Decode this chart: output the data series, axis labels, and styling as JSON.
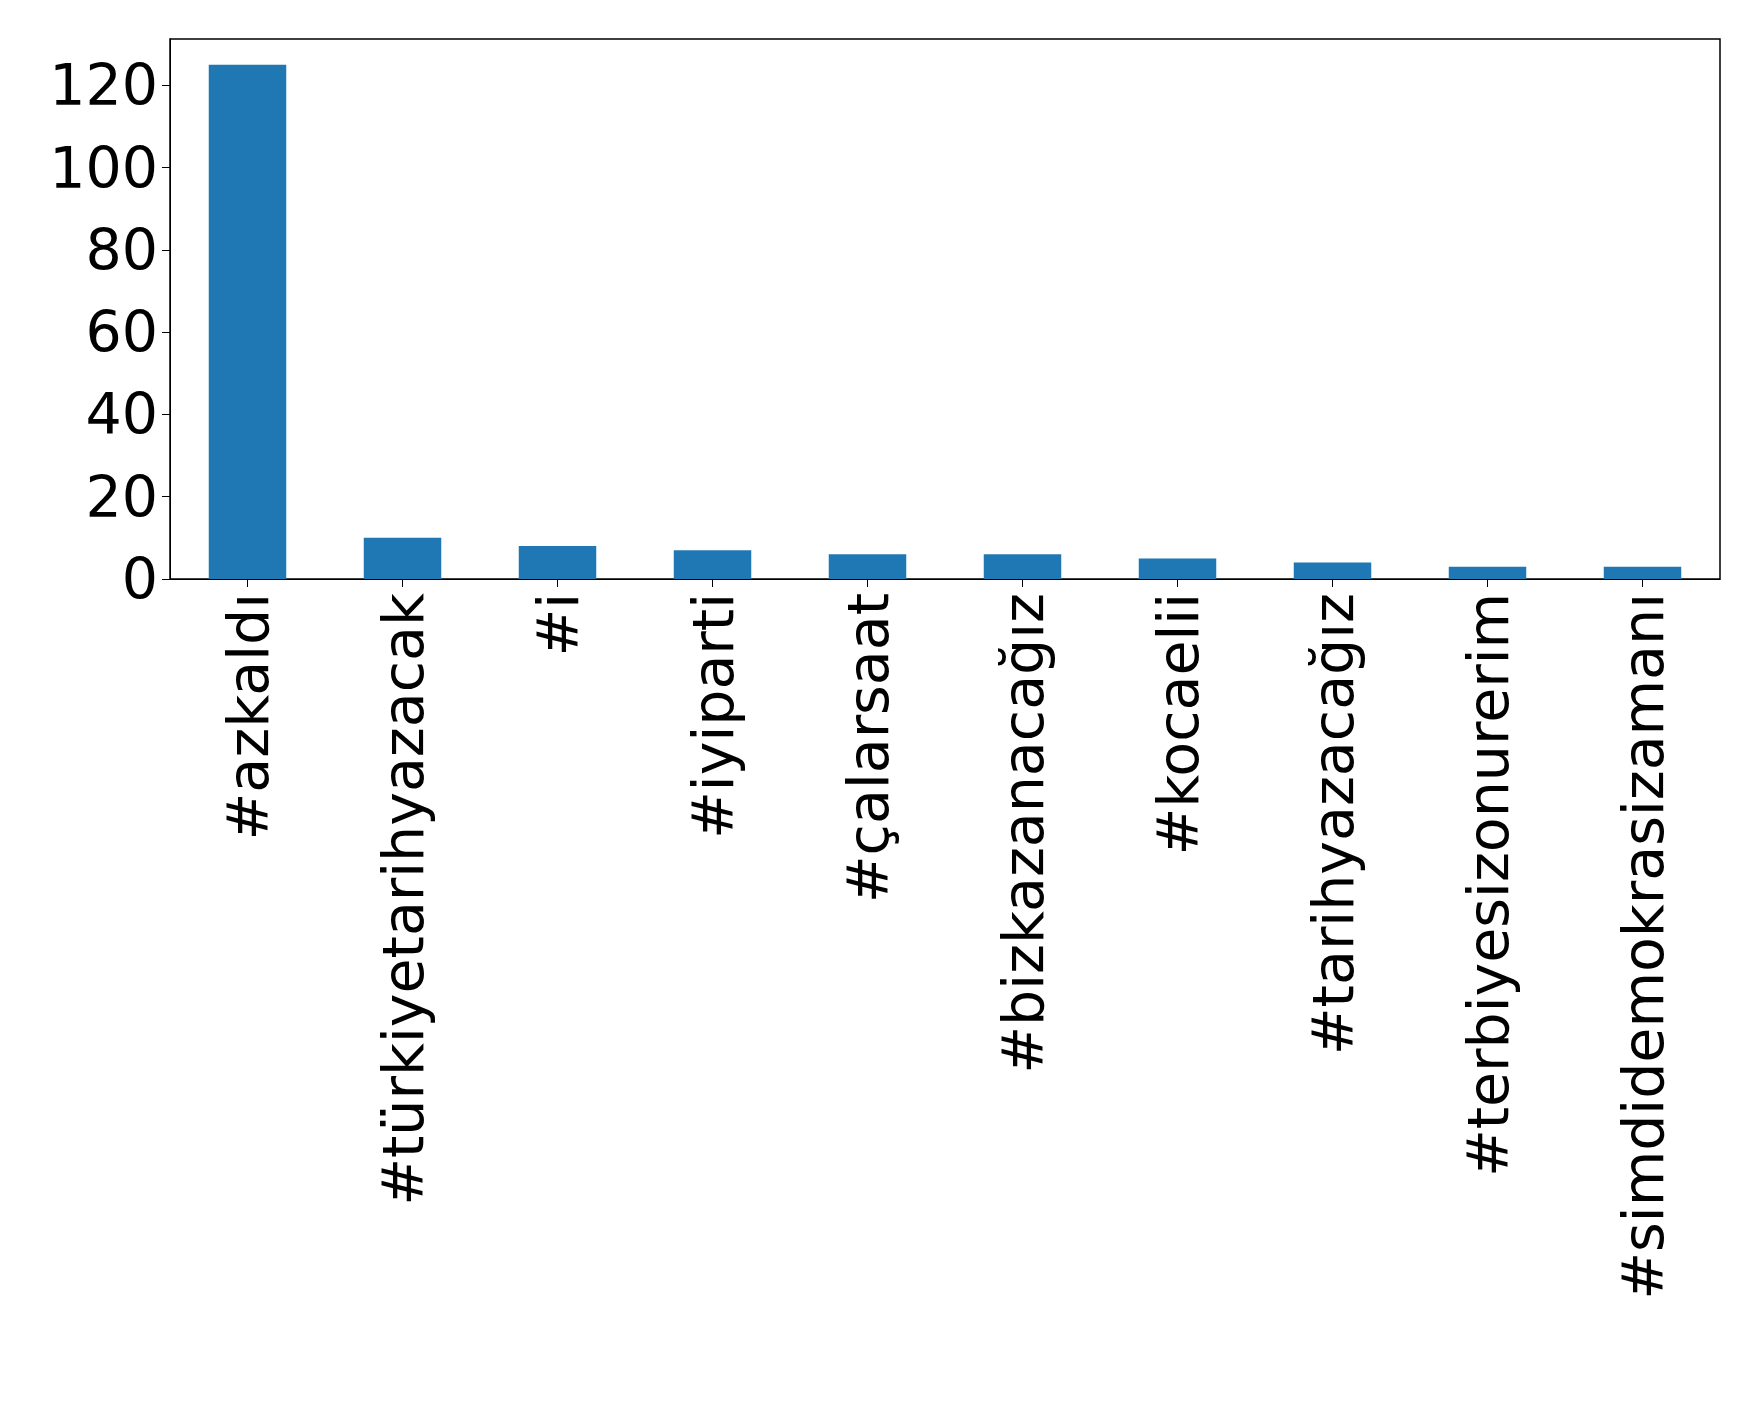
{
  "chart_data": {
    "type": "bar",
    "categories": [
      "#azkaldı",
      "#türkiyetarihyazacak",
      "#i",
      "#iyiparti",
      "#çalarsaat",
      "#bizkazanacağız",
      "#kocaelii",
      "#tarihyazacağız",
      "#terbiyesizonurerim",
      "#simdidemokrasizamanı"
    ],
    "values": [
      125,
      10,
      8,
      7,
      6,
      6,
      5,
      4,
      3,
      3
    ],
    "color": "#1f77b4",
    "ylim": [
      0,
      131.25
    ],
    "yticks": [
      0,
      20,
      40,
      60,
      80,
      100,
      120
    ],
    "grid": false
  }
}
